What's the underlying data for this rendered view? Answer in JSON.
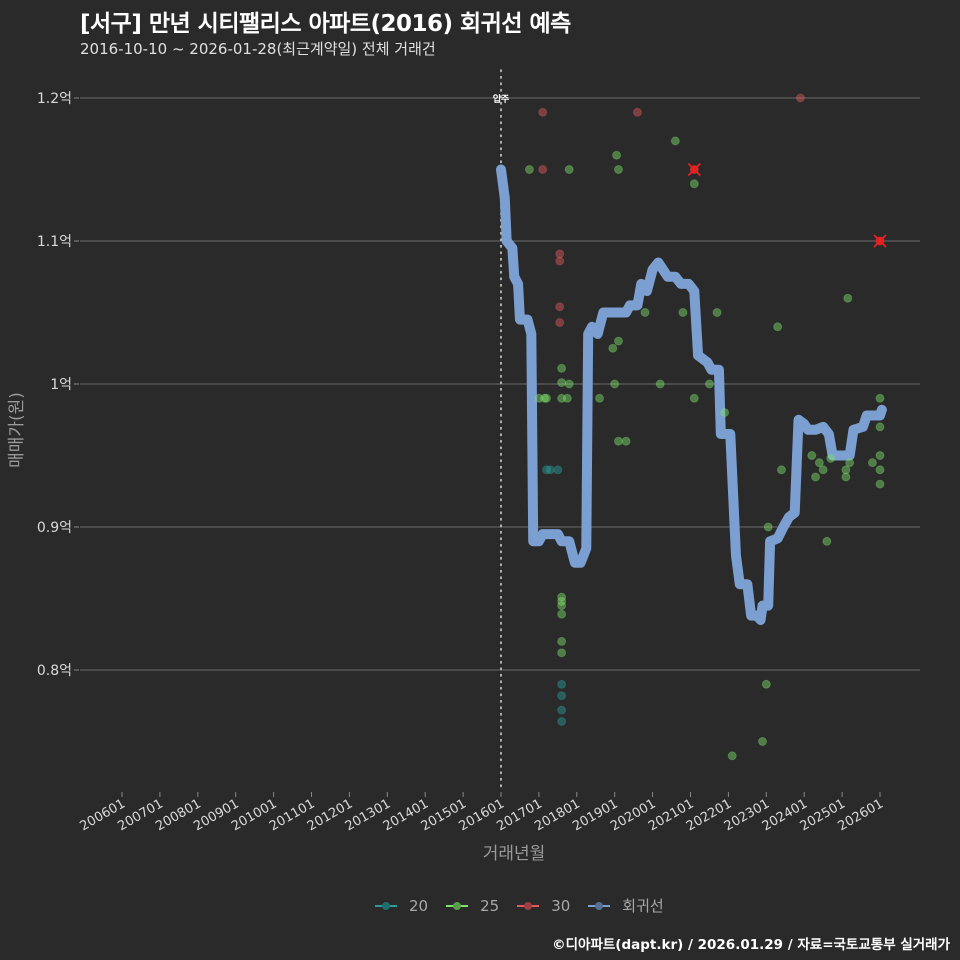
{
  "header": {
    "title": "[서구] 만년 시티팰리스 아파트(2016) 회귀선 예측",
    "subtitle": "2016-10-10 ~ 2026-01-28(최근계약일) 전체 거래건"
  },
  "caption": "©디아파트(dapt.kr) / 2026.01.29 / 자료=국토교통부 실거래가",
  "colors": {
    "background": "#2a2a2b",
    "grid": "#6b6b6b",
    "s20": "#2a9d9a",
    "s25": "#7ee06a",
    "s30": "#e05a5f",
    "regression": "#7b9fd0",
    "marker_x": "#e82020"
  },
  "legend": [
    {
      "label": "20",
      "color": "#2a9d9a"
    },
    {
      "label": "25",
      "color": "#7ee06a"
    },
    {
      "label": "30",
      "color": "#e05a5f"
    },
    {
      "label": "회귀선",
      "color": "#7b9fd0"
    }
  ],
  "chart_data": {
    "type": "scatter",
    "title": "[서구] 만년 시티팰리스 아파트(2016) 회귀선 예측",
    "subtitle": "2016-10-10 ~ 2026-01-28(최근계약일) 전체 거래건",
    "xlabel": "거래년월",
    "ylabel": "매매가(원)",
    "x_tick_labels": [
      "200601",
      "200701",
      "200801",
      "200901",
      "201001",
      "201101",
      "201201",
      "201301",
      "201401",
      "201501",
      "201601",
      "201701",
      "201801",
      "201901",
      "202001",
      "202101",
      "202201",
      "202301",
      "202401",
      "202501",
      "202601"
    ],
    "y_tick_labels": [
      "0.8억",
      "0.9억",
      "1억",
      "1.1억",
      "1.2억"
    ],
    "y_tick_values": [
      0.8,
      0.9,
      1.0,
      1.1,
      1.2
    ],
    "ylim": [
      0.72,
      1.22
    ],
    "xlim": [
      2005.5,
      2026.5
    ],
    "grid": "horizontal",
    "legend_position": "bottom",
    "vline": {
      "x": 2016.0,
      "label": "입주",
      "style": "dotted"
    },
    "series": [
      {
        "name": "20",
        "type": "scatter",
        "points": [
          [
            2017.2,
            0.94
          ],
          [
            2017.3,
            0.94
          ],
          [
            2017.5,
            0.94
          ],
          [
            2017.6,
            0.79
          ],
          [
            2017.6,
            0.782
          ],
          [
            2017.6,
            0.772
          ],
          [
            2017.6,
            0.764
          ]
        ]
      },
      {
        "name": "25",
        "type": "scatter",
        "points": [
          [
            2016.75,
            1.15
          ],
          [
            2017.0,
            0.99
          ],
          [
            2017.15,
            0.99
          ],
          [
            2017.2,
            0.99
          ],
          [
            2017.6,
            1.011
          ],
          [
            2017.6,
            1.001
          ],
          [
            2017.6,
            0.99
          ],
          [
            2017.75,
            0.99
          ],
          [
            2017.8,
            1.0
          ],
          [
            2017.8,
            1.15
          ],
          [
            2017.6,
            0.851
          ],
          [
            2017.6,
            0.848
          ],
          [
            2017.6,
            0.845
          ],
          [
            2017.6,
            0.839
          ],
          [
            2017.6,
            0.82
          ],
          [
            2017.6,
            0.812
          ],
          [
            2018.6,
            0.99
          ],
          [
            2018.95,
            1.025
          ],
          [
            2019.0,
            1.0
          ],
          [
            2019.05,
            1.16
          ],
          [
            2019.1,
            1.15
          ],
          [
            2019.1,
            1.03
          ],
          [
            2019.1,
            0.96
          ],
          [
            2019.3,
            0.96
          ],
          [
            2019.8,
            1.05
          ],
          [
            2020.2,
            1.0
          ],
          [
            2020.6,
            1.17
          ],
          [
            2020.8,
            1.05
          ],
          [
            2021.1,
            1.14
          ],
          [
            2021.1,
            0.99
          ],
          [
            2021.5,
            1.0
          ],
          [
            2021.7,
            1.05
          ],
          [
            2021.9,
            0.98
          ],
          [
            2022.1,
            0.74
          ],
          [
            2022.9,
            0.75
          ],
          [
            2023.0,
            0.79
          ],
          [
            2023.05,
            0.9
          ],
          [
            2023.3,
            1.04
          ],
          [
            2023.4,
            0.94
          ],
          [
            2024.2,
            0.95
          ],
          [
            2024.3,
            0.935
          ],
          [
            2024.4,
            0.945
          ],
          [
            2024.5,
            0.94
          ],
          [
            2024.6,
            0.89
          ],
          [
            2024.7,
            0.948
          ],
          [
            2025.1,
            0.94
          ],
          [
            2025.1,
            0.935
          ],
          [
            2025.15,
            1.06
          ],
          [
            2025.2,
            0.945
          ],
          [
            2025.8,
            0.945
          ],
          [
            2026.0,
            0.99
          ],
          [
            2026.0,
            0.97
          ],
          [
            2026.0,
            0.95
          ],
          [
            2026.0,
            0.94
          ],
          [
            2026.0,
            0.93
          ]
        ]
      },
      {
        "name": "30",
        "type": "scatter",
        "points": [
          [
            2017.1,
            1.19
          ],
          [
            2017.1,
            1.15
          ],
          [
            2017.55,
            1.091
          ],
          [
            2017.55,
            1.086
          ],
          [
            2017.55,
            1.054
          ],
          [
            2017.55,
            1.043
          ],
          [
            2019.6,
            1.19
          ],
          [
            2021.1,
            1.15
          ],
          [
            2023.9,
            1.2
          ],
          [
            2026.0,
            1.1
          ]
        ]
      },
      {
        "name": "회귀선",
        "type": "line",
        "points": [
          [
            2016.0,
            1.15
          ],
          [
            2016.1,
            1.13
          ],
          [
            2016.15,
            1.1
          ],
          [
            2016.3,
            1.095
          ],
          [
            2016.35,
            1.075
          ],
          [
            2016.45,
            1.07
          ],
          [
            2016.5,
            1.045
          ],
          [
            2016.7,
            1.045
          ],
          [
            2016.8,
            1.035
          ],
          [
            2016.85,
            0.89
          ],
          [
            2017.0,
            0.89
          ],
          [
            2017.1,
            0.895
          ],
          [
            2017.5,
            0.895
          ],
          [
            2017.6,
            0.89
          ],
          [
            2017.8,
            0.89
          ],
          [
            2017.95,
            0.875
          ],
          [
            2018.1,
            0.875
          ],
          [
            2018.25,
            0.885
          ],
          [
            2018.3,
            1.035
          ],
          [
            2018.4,
            1.04
          ],
          [
            2018.55,
            1.035
          ],
          [
            2018.7,
            1.05
          ],
          [
            2019.3,
            1.05
          ],
          [
            2019.4,
            1.055
          ],
          [
            2019.6,
            1.055
          ],
          [
            2019.7,
            1.07
          ],
          [
            2019.85,
            1.065
          ],
          [
            2020.0,
            1.08
          ],
          [
            2020.15,
            1.085
          ],
          [
            2020.4,
            1.075
          ],
          [
            2020.6,
            1.075
          ],
          [
            2020.75,
            1.07
          ],
          [
            2020.95,
            1.07
          ],
          [
            2021.1,
            1.065
          ],
          [
            2021.2,
            1.02
          ],
          [
            2021.45,
            1.015
          ],
          [
            2021.55,
            1.01
          ],
          [
            2021.75,
            1.01
          ],
          [
            2021.8,
            0.965
          ],
          [
            2022.05,
            0.965
          ],
          [
            2022.2,
            0.88
          ],
          [
            2022.3,
            0.86
          ],
          [
            2022.5,
            0.86
          ],
          [
            2022.6,
            0.838
          ],
          [
            2022.75,
            0.838
          ],
          [
            2022.85,
            0.835
          ],
          [
            2022.9,
            0.845
          ],
          [
            2023.05,
            0.845
          ],
          [
            2023.1,
            0.89
          ],
          [
            2023.3,
            0.892
          ],
          [
            2023.45,
            0.9
          ],
          [
            2023.6,
            0.907
          ],
          [
            2023.75,
            0.91
          ],
          [
            2023.85,
            0.975
          ],
          [
            2024.0,
            0.972
          ],
          [
            2024.1,
            0.968
          ],
          [
            2024.3,
            0.968
          ],
          [
            2024.5,
            0.97
          ],
          [
            2024.65,
            0.965
          ],
          [
            2024.75,
            0.95
          ],
          [
            2025.2,
            0.95
          ],
          [
            2025.3,
            0.968
          ],
          [
            2025.55,
            0.97
          ],
          [
            2025.65,
            0.978
          ],
          [
            2026.0,
            0.978
          ],
          [
            2026.05,
            0.982
          ]
        ]
      }
    ],
    "highlighted_points": [
      {
        "series": "30",
        "x": 2021.1,
        "y": 1.15,
        "marker": "x"
      },
      {
        "series": "30",
        "x": 2026.0,
        "y": 1.1,
        "marker": "x"
      }
    ]
  }
}
